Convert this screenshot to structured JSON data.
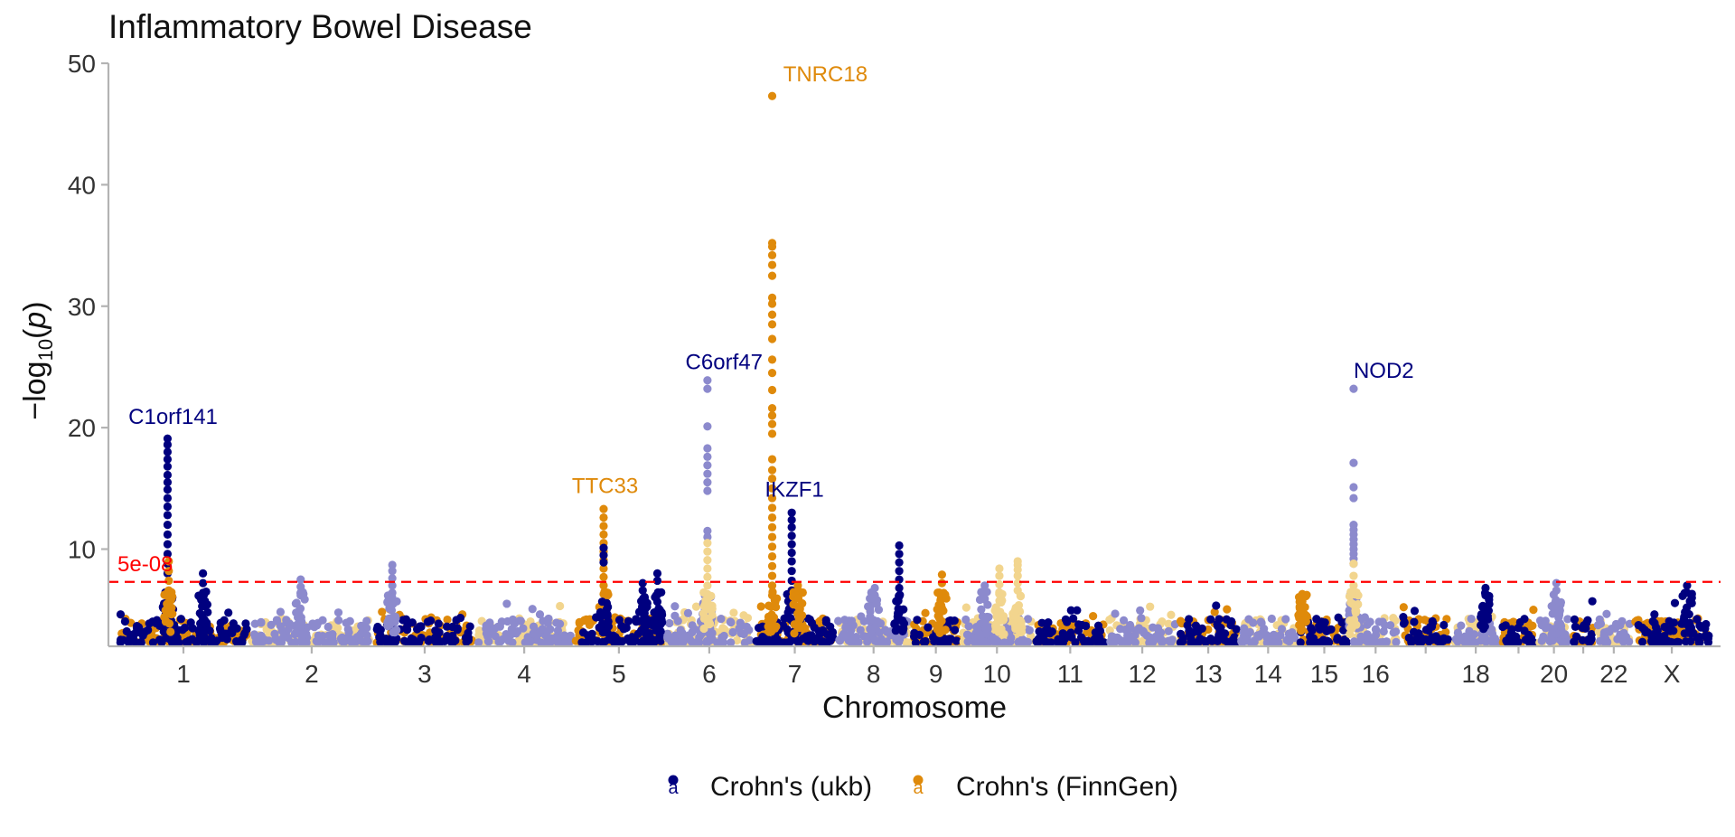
{
  "chart_data": {
    "type": "scatter",
    "title": "Inflammatory Bowel Disease",
    "xlabel": "Chromosome",
    "ylabel": {
      "prefix": "−log",
      "sub": "10",
      "open": "(",
      "var": "p",
      "close": ")"
    },
    "ylim": [
      2,
      50
    ],
    "yticks": [
      10,
      20,
      30,
      40,
      50
    ],
    "grid": false,
    "legend_position": "bottom",
    "legend_key_glyph": "a",
    "threshold": {
      "label": "5e-08",
      "value": 7.3,
      "color": "#ff0000"
    },
    "series": [
      {
        "name": "Crohn's (ukb)",
        "color": "#00007f",
        "alt_color": "#8c8acd"
      },
      {
        "name": "Crohn's (FinnGen)",
        "color": "#df8a0b",
        "alt_color": "#f2d58e"
      }
    ],
    "chromosomes": [
      {
        "label": "1",
        "start": 0,
        "end": 1.08
      },
      {
        "label": "2",
        "start": 1.08,
        "end": 2.1
      },
      {
        "label": "3",
        "start": 2.1,
        "end": 2.93
      },
      {
        "label": "4",
        "start": 2.93,
        "end": 3.73
      },
      {
        "label": "5",
        "start": 3.73,
        "end": 4.48
      },
      {
        "label": "6",
        "start": 4.48,
        "end": 5.21
      },
      {
        "label": "7",
        "start": 5.21,
        "end": 5.88
      },
      {
        "label": "8",
        "start": 5.88,
        "end": 6.5
      },
      {
        "label": "9",
        "start": 6.5,
        "end": 6.9
      },
      {
        "label": "10",
        "start": 6.9,
        "end": 7.5
      },
      {
        "label": "11",
        "start": 7.5,
        "end": 8.1
      },
      {
        "label": "12",
        "start": 8.1,
        "end": 8.68
      },
      {
        "label": "13",
        "start": 8.68,
        "end": 9.18
      },
      {
        "label": "14",
        "start": 9.18,
        "end": 9.66
      },
      {
        "label": "15",
        "start": 9.66,
        "end": 10.1
      },
      {
        "label": "16",
        "start": 10.1,
        "end": 10.5
      },
      {
        "label": "",
        "start": 10.5,
        "end": 10.92
      },
      {
        "label": "18",
        "start": 10.92,
        "end": 11.32
      },
      {
        "label": "",
        "start": 11.32,
        "end": 11.62
      },
      {
        "label": "20",
        "start": 11.62,
        "end": 11.9
      },
      {
        "label": "",
        "start": 11.9,
        "end": 12.1
      },
      {
        "label": "22",
        "start": 12.1,
        "end": 12.4
      },
      {
        "label": "X",
        "start": 12.4,
        "end": 13.05
      }
    ],
    "annotations": [
      {
        "text": "TNRC18",
        "x": 5.45,
        "y": 48.5,
        "series": 1
      },
      {
        "text": "C1orf141",
        "x": 0.09,
        "y": 20.3,
        "series": 0
      },
      {
        "text": "C6orf47",
        "x": 4.65,
        "y": 24.8,
        "series": 0
      },
      {
        "text": "TTC33",
        "x": 3.72,
        "y": 14.6,
        "series": 1
      },
      {
        "text": "IKZF1",
        "x": 5.3,
        "y": 14.3,
        "series": 0
      },
      {
        "text": "NOD2",
        "x": 10.12,
        "y": 24.1,
        "series": 0
      }
    ],
    "peaks": [
      {
        "x": 0.41,
        "ys": [
          19.1,
          18.6,
          18.0,
          17.4,
          16.8,
          16.1,
          15.5,
          14.9,
          14.2,
          13.5,
          12.8,
          12.0,
          11.2,
          10.4,
          9.6,
          8.8,
          8.0
        ],
        "series": 0,
        "shade": "main"
      },
      {
        "x": 0.42,
        "ys": [
          9.0,
          8.2,
          7.4,
          6.6
        ],
        "series": 1,
        "shade": "main"
      },
      {
        "x": 0.7,
        "ys": [
          8.0,
          7.2,
          6.4
        ],
        "series": 0,
        "shade": "main"
      },
      {
        "x": 1.5,
        "ys": [
          7.5,
          6.9,
          6.2
        ],
        "series": 0,
        "shade": "alt"
      },
      {
        "x": 2.25,
        "ys": [
          8.7,
          8.2,
          7.6,
          7.0,
          6.4
        ],
        "series": 0,
        "shade": "alt"
      },
      {
        "x": 3.98,
        "ys": [
          13.3,
          12.6,
          11.9,
          11.2,
          10.5,
          9.8,
          9.1,
          8.4,
          7.7,
          7.0,
          6.3
        ],
        "series": 1,
        "shade": "main"
      },
      {
        "x": 3.98,
        "ys": [
          10.1,
          9.5,
          8.9
        ],
        "series": 0,
        "shade": "main"
      },
      {
        "x": 4.3,
        "ys": [
          7.2,
          6.6
        ],
        "series": 0,
        "shade": "main"
      },
      {
        "x": 4.42,
        "ys": [
          8.0,
          7.4
        ],
        "series": 0,
        "shade": "main"
      },
      {
        "x": 4.83,
        "ys": [
          23.9,
          23.2,
          20.1,
          18.3,
          17.6,
          16.9,
          16.2,
          15.5,
          14.8,
          11.5,
          11.0
        ],
        "series": 0,
        "shade": "alt"
      },
      {
        "x": 4.83,
        "ys": [
          10.5,
          9.8,
          9.1,
          8.4,
          7.7,
          7.0,
          6.3,
          5.6
        ],
        "series": 1,
        "shade": "alt"
      },
      {
        "x": 5.36,
        "ys": [
          47.3,
          35.2,
          34.9,
          34.2,
          33.4,
          32.5,
          30.7,
          30.2,
          29.3,
          28.5,
          27.3,
          25.6,
          24.5,
          23.1,
          21.6,
          21.0,
          20.3,
          19.5,
          17.4,
          16.5,
          15.8,
          15.0,
          14.2,
          13.4,
          12.6,
          11.8,
          11.0,
          10.2,
          9.4,
          8.6,
          7.8,
          7.0,
          6.2
        ],
        "series": 1,
        "shade": "main"
      },
      {
        "x": 5.52,
        "ys": [
          13.0,
          12.4,
          11.8,
          11.1,
          10.4,
          9.7,
          9.0,
          8.2,
          7.4,
          6.6
        ],
        "series": 0,
        "shade": "main"
      },
      {
        "x": 5.57,
        "ys": [
          7.0,
          6.4
        ],
        "series": 1,
        "shade": "main"
      },
      {
        "x": 6.2,
        "ys": [
          6.8,
          6.2
        ],
        "series": 0,
        "shade": "alt"
      },
      {
        "x": 6.4,
        "ys": [
          10.3,
          9.6,
          8.9,
          8.2,
          7.5,
          6.8,
          6.1
        ],
        "series": 0,
        "shade": "main"
      },
      {
        "x": 6.75,
        "ys": [
          7.9,
          7.2
        ],
        "series": 1,
        "shade": "main"
      },
      {
        "x": 7.22,
        "ys": [
          8.4,
          7.8,
          7.1
        ],
        "series": 1,
        "shade": "alt"
      },
      {
        "x": 7.37,
        "ys": [
          9.0,
          8.7,
          8.3,
          7.8,
          7.2,
          6.6
        ],
        "series": 1,
        "shade": "alt"
      },
      {
        "x": 7.1,
        "ys": [
          7.0,
          6.4
        ],
        "series": 0,
        "shade": "alt"
      },
      {
        "x": 10.12,
        "ys": [
          23.2,
          17.1,
          15.1,
          14.2,
          12.0,
          11.6,
          11.2,
          10.8,
          10.4,
          10.0,
          9.6,
          9.2,
          8.8
        ],
        "series": 0,
        "shade": "alt"
      },
      {
        "x": 10.12,
        "ys": [
          8.8,
          7.8,
          7.0,
          6.3
        ],
        "series": 1,
        "shade": "alt"
      },
      {
        "x": 9.7,
        "ys": [
          6.3,
          5.7
        ],
        "series": 1,
        "shade": "main"
      },
      {
        "x": 11.2,
        "ys": [
          6.8,
          6.2
        ],
        "series": 0,
        "shade": "main"
      },
      {
        "x": 11.78,
        "ys": [
          7.2,
          6.6
        ],
        "series": 0,
        "shade": "alt"
      },
      {
        "x": 12.85,
        "ys": [
          7.0,
          6.4
        ],
        "series": 0,
        "shade": "main"
      }
    ]
  }
}
